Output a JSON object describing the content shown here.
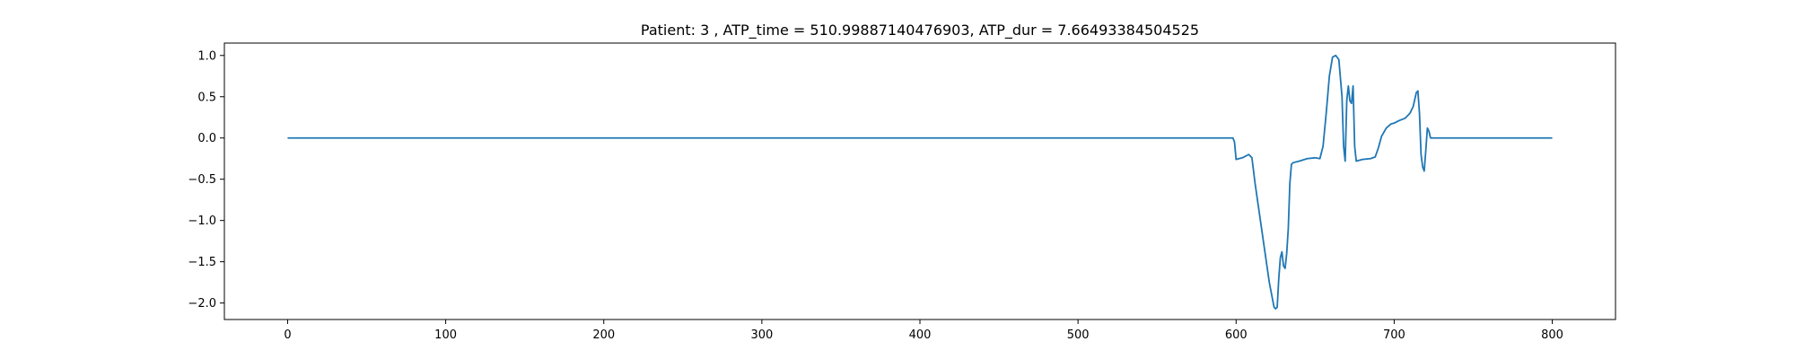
{
  "chart_data": {
    "type": "line",
    "title": "Patient: 3 , ATP_time = 510.99887140476903, ATP_dur = 7.66493384504525",
    "xlabel": "",
    "ylabel": "",
    "xlim": [
      -40,
      840
    ],
    "ylim": [
      -2.2,
      1.15
    ],
    "grid": false,
    "xticks": [
      0,
      100,
      200,
      300,
      400,
      500,
      600,
      700,
      800
    ],
    "xtick_labels": [
      "0",
      "100",
      "200",
      "300",
      "400",
      "500",
      "600",
      "700",
      "800"
    ],
    "yticks": [
      1.0,
      0.5,
      0.0,
      -0.5,
      -1.0,
      -1.5,
      -2.0
    ],
    "ytick_labels": [
      "1.0",
      "0.5",
      "0.0",
      "−0.5",
      "−1.0",
      "−1.5",
      "−2.0"
    ],
    "series": [
      {
        "color": "#1f77b4",
        "x": [
          0,
          100,
          200,
          300,
          400,
          500,
          598,
          599,
          600,
          604,
          608,
          610,
          612,
          615,
          618,
          621,
          624,
          625,
          626,
          627,
          628,
          629,
          630,
          631,
          632,
          633,
          634,
          635,
          636,
          640,
          645,
          650,
          653,
          655,
          657,
          659,
          661,
          663,
          665,
          667,
          668,
          669,
          670,
          671,
          672,
          673,
          674,
          675,
          676,
          680,
          685,
          688,
          690,
          692,
          695,
          698,
          700,
          703,
          707,
          710,
          712,
          714,
          715,
          716,
          717,
          718,
          719,
          720,
          721,
          722,
          723,
          724,
          725,
          740,
          760,
          780,
          800
        ],
        "y": [
          0,
          0,
          0,
          0,
          0,
          0,
          0,
          -0.05,
          -0.26,
          -0.24,
          -0.2,
          -0.24,
          -0.55,
          -0.95,
          -1.35,
          -1.75,
          -2.05,
          -2.07,
          -2.05,
          -1.7,
          -1.45,
          -1.38,
          -1.55,
          -1.58,
          -1.4,
          -1.1,
          -0.55,
          -0.32,
          -0.3,
          -0.28,
          -0.25,
          -0.24,
          -0.25,
          -0.1,
          0.3,
          0.75,
          0.98,
          1.0,
          0.95,
          0.5,
          -0.1,
          -0.28,
          0.45,
          0.63,
          0.45,
          0.42,
          0.63,
          -0.1,
          -0.28,
          -0.26,
          -0.25,
          -0.23,
          -0.12,
          0.02,
          0.12,
          0.17,
          0.18,
          0.21,
          0.24,
          0.3,
          0.38,
          0.55,
          0.57,
          0.3,
          -0.2,
          -0.35,
          -0.4,
          -0.15,
          0.12,
          0.08,
          0.0,
          0.0,
          0.0,
          0.0,
          0.0,
          0.0,
          0.0
        ]
      }
    ]
  }
}
